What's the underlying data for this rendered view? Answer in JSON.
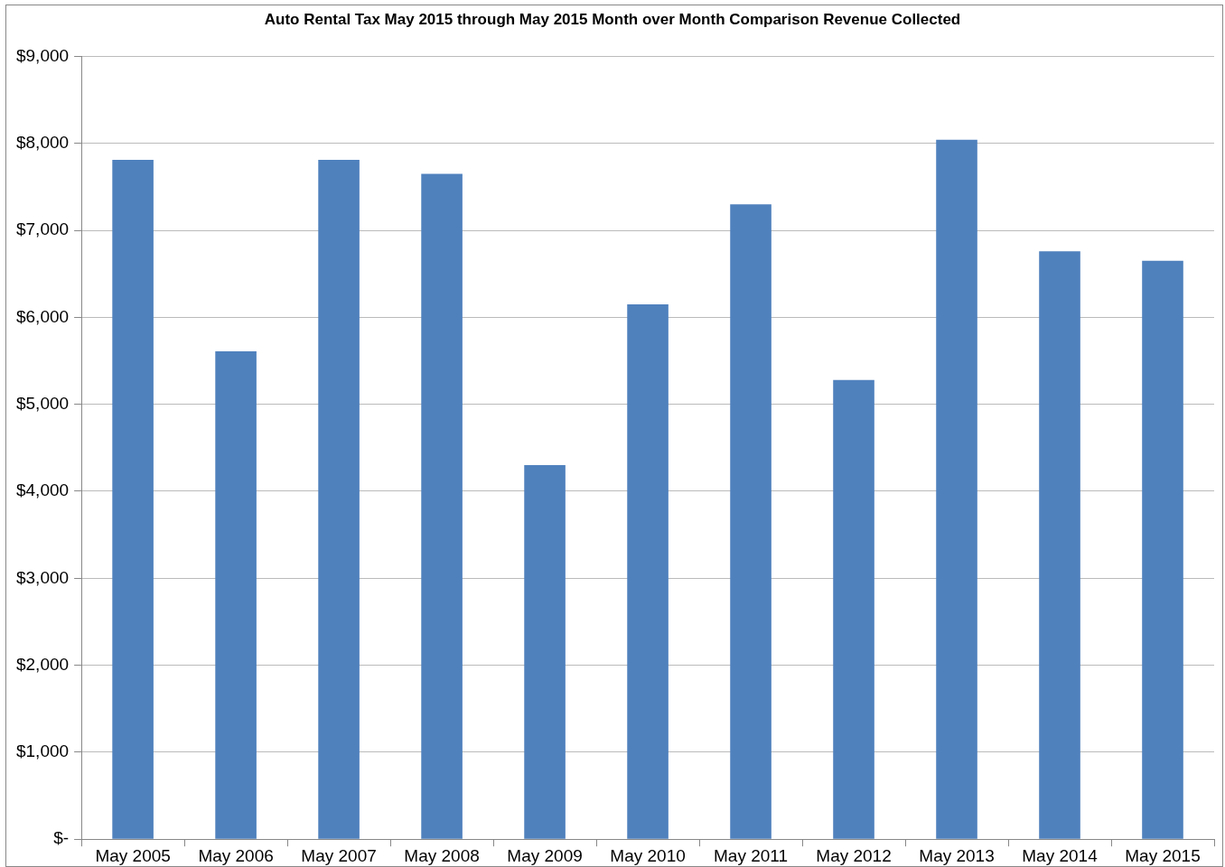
{
  "chart_data": {
    "type": "bar",
    "title": "Auto Rental Tax May 2015 through May 2015 Month over Month Comparison Revenue Collected",
    "categories": [
      "May 2005",
      "May 2006",
      "May 2007",
      "May 2008",
      "May 2009",
      "May 2010",
      "May 2011",
      "May 2012",
      "May 2013",
      "May 2014",
      "May 2015"
    ],
    "values": [
      7810,
      5610,
      7810,
      7650,
      4300,
      6150,
      7300,
      5280,
      8040,
      6760,
      6650
    ],
    "color": "#4f81bd",
    "ylim": [
      0,
      9000
    ],
    "yticks": [
      {
        "value": 0,
        "label": "$-"
      },
      {
        "value": 1000,
        "label": "$1,000"
      },
      {
        "value": 2000,
        "label": "$2,000"
      },
      {
        "value": 3000,
        "label": "$3,000"
      },
      {
        "value": 4000,
        "label": "$4,000"
      },
      {
        "value": 5000,
        "label": "$5,000"
      },
      {
        "value": 6000,
        "label": "$6,000"
      },
      {
        "value": 7000,
        "label": "$7,000"
      },
      {
        "value": 8000,
        "label": "$8,000"
      },
      {
        "value": 9000,
        "label": "$9,000"
      }
    ],
    "grid": "y"
  }
}
